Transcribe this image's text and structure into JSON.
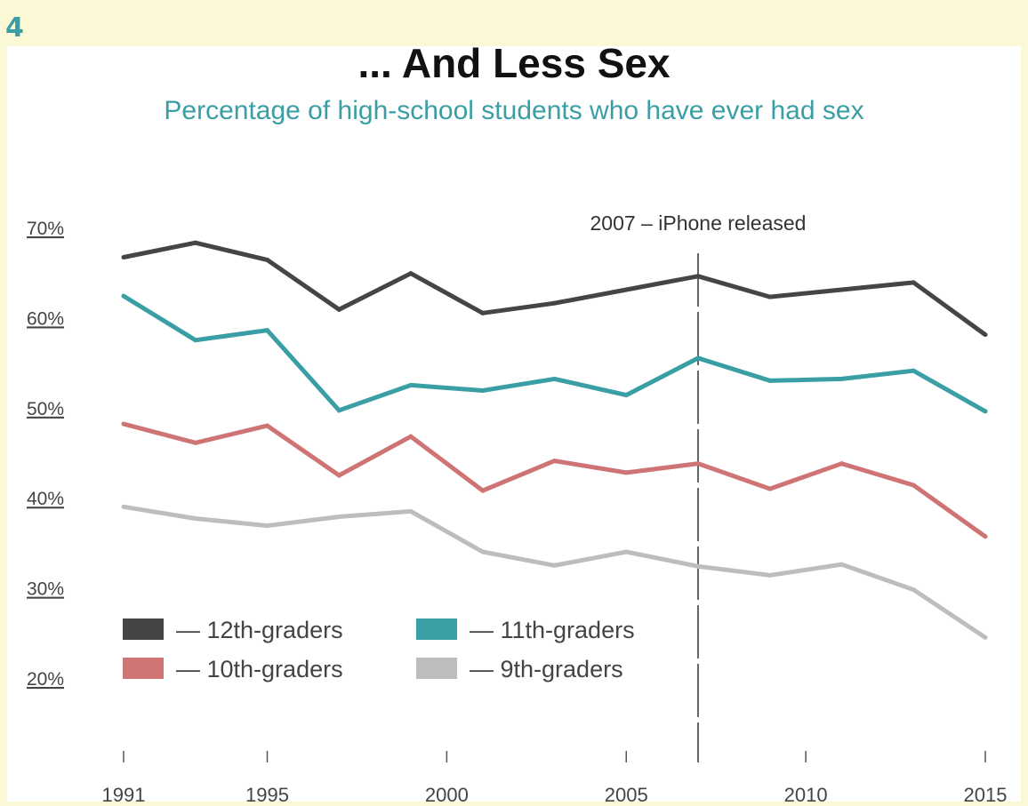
{
  "slide_number": "4",
  "chart_data": {
    "type": "line",
    "title": "... And Less Sex",
    "subtitle": "Percentage of high-school students who have ever had sex",
    "xlabel": "",
    "ylabel": "",
    "x": [
      1991,
      1993,
      1995,
      1997,
      1999,
      2001,
      2003,
      2005,
      2007,
      2009,
      2011,
      2013,
      2015
    ],
    "xlim": [
      1991,
      2015
    ],
    "ylim": [
      20,
      70
    ],
    "y_ticks": [
      {
        "value": 70,
        "label": "70%"
      },
      {
        "value": 60,
        "label": "60%"
      },
      {
        "value": 50,
        "label": "50%"
      },
      {
        "value": 40,
        "label": "40%"
      },
      {
        "value": 30,
        "label": "30%"
      },
      {
        "value": 20,
        "label": "20%"
      }
    ],
    "x_ticks": [
      {
        "value": 1991,
        "label": "1991"
      },
      {
        "value": 1995,
        "label": "1995"
      },
      {
        "value": 2000,
        "label": "2000"
      },
      {
        "value": 2005,
        "label": "2005"
      },
      {
        "value": 2010,
        "label": "2010"
      },
      {
        "value": 2015,
        "label": "2015"
      }
    ],
    "series": [
      {
        "name": "— 12th-graders",
        "color": "#454545",
        "values": [
          66.7,
          68.3,
          66.4,
          60.9,
          64.9,
          60.5,
          61.6,
          63.1,
          64.6,
          62.3,
          63.1,
          63.9,
          58.1
        ]
      },
      {
        "name": "— 11th-graders",
        "color": "#3a9ea5",
        "values": [
          62.4,
          57.5,
          58.6,
          49.7,
          52.5,
          51.9,
          53.2,
          51.4,
          55.5,
          53.0,
          53.2,
          54.1,
          49.6
        ]
      },
      {
        "name": "— 10th-graders",
        "color": "#cf7475",
        "values": [
          48.2,
          46.1,
          48.0,
          42.5,
          46.8,
          40.8,
          44.1,
          42.8,
          43.8,
          41.0,
          43.8,
          41.4,
          35.7
        ]
      },
      {
        "name": "— 9th-graders",
        "color": "#bdbdbd",
        "values": [
          39.0,
          37.7,
          36.9,
          37.9,
          38.5,
          34.0,
          32.5,
          34.0,
          32.4,
          31.4,
          32.6,
          29.8,
          24.5
        ]
      }
    ],
    "legend": {
      "position": "bottom-left",
      "columns": 2
    },
    "annotations": [
      {
        "label": "2007 – iPhone released",
        "x": 2007,
        "style": "dashed-vertical-line"
      }
    ],
    "grid": false
  }
}
